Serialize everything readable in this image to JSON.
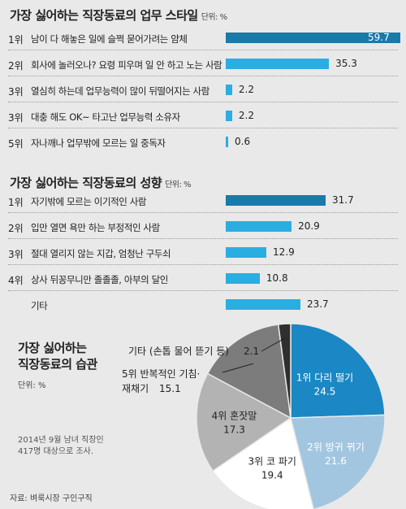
{
  "chart_data": [
    {
      "type": "bar",
      "title": "가장 싫어하는 직장동료의 업무 스타일",
      "unit": "단위: %",
      "rows": [
        {
          "rank": "1위",
          "label": "남이 다 해놓은 일에 슬쩍 묻어가려는 얌체",
          "value": 59.7,
          "value_label": "59.7"
        },
        {
          "rank": "2위",
          "label": "회사에 놀러오나? 요령 피우며 일 안 하고 노는 사람",
          "value": 35.3,
          "value_label": "35.3"
        },
        {
          "rank": "3위",
          "label": "열심히 하는데 업무능력이 많이 뒤떨어지는 사람",
          "value": 2.2,
          "value_label": "2.2"
        },
        {
          "rank": "3위",
          "label": "대충 해도 OK~ 타고난 업무능력 소유자",
          "value": 2.2,
          "value_label": "2.2"
        },
        {
          "rank": "5위",
          "label": "자나깨나 업무밖에 모르는 일 중독자",
          "value": 0.6,
          "value_label": "0.6"
        }
      ]
    },
    {
      "type": "bar",
      "title": "가장 싫어하는 직장동료의 성향",
      "unit": "단위: %",
      "rows": [
        {
          "rank": "1위",
          "label": "자기밖에 모르는 이기적인 사람",
          "value": 31.7,
          "value_label": "31.7"
        },
        {
          "rank": "2위",
          "label": "입만 열면 욕만 하는 부정적인 사람",
          "value": 20.9,
          "value_label": "20.9"
        },
        {
          "rank": "3위",
          "label": "절대 열리지 않는 지갑, 엄청난 구두쇠",
          "value": 12.9,
          "value_label": "12.9"
        },
        {
          "rank": "4위",
          "label": "상사 뒤꽁무니만 졸졸졸, 아부의 달인",
          "value": 10.8,
          "value_label": "10.8"
        },
        {
          "rank": "",
          "label": "기타",
          "value": 23.7,
          "value_label": "23.7"
        }
      ]
    },
    {
      "type": "pie",
      "title_lines": [
        "가장 싫어하는",
        "직장동료의 습관"
      ],
      "unit": "단위: %",
      "slices": [
        {
          "label": "1위 다리 떨기",
          "value": 24.5,
          "value_label": "24.5",
          "color": "#1b87c4"
        },
        {
          "label": "2위 방귀 뀌기",
          "value": 21.6,
          "value_label": "21.6",
          "color": "#a3c6e0"
        },
        {
          "label": "3위 코 파기",
          "value": 19.4,
          "value_label": "19.4",
          "color": "#ffffff"
        },
        {
          "label": "4위 혼잣말",
          "value": 17.3,
          "value_label": "17.3",
          "color": "#b3b3b3"
        },
        {
          "label": "5위 반복적인 기침·재채기",
          "value": 15.1,
          "value_label": "15.1",
          "color": "#7c7c7c"
        },
        {
          "label": "기타 (손톱 물어 뜯기 등)",
          "value": 2.1,
          "value_label": "2.1",
          "color": "#2f2f2f"
        }
      ],
      "outside_labels": {
        "etc": {
          "text": "기타 (손톱 물어 뜯기 등)",
          "value": "2.1"
        },
        "fifth": {
          "line1": "5위 반복적인 기침·",
          "line2": "재채기",
          "value": "15.1"
        }
      }
    }
  ],
  "note": [
    "2014년 9월 남녀 직장인",
    "417명 대상으로 조사."
  ],
  "source": "자료: 벼룩시장 구인구직",
  "colors": {
    "highlight_bar": "#1a7aa8",
    "bar": "#2aaee2",
    "dotted": "#9a9a9a",
    "background": "#e9e9e9"
  }
}
